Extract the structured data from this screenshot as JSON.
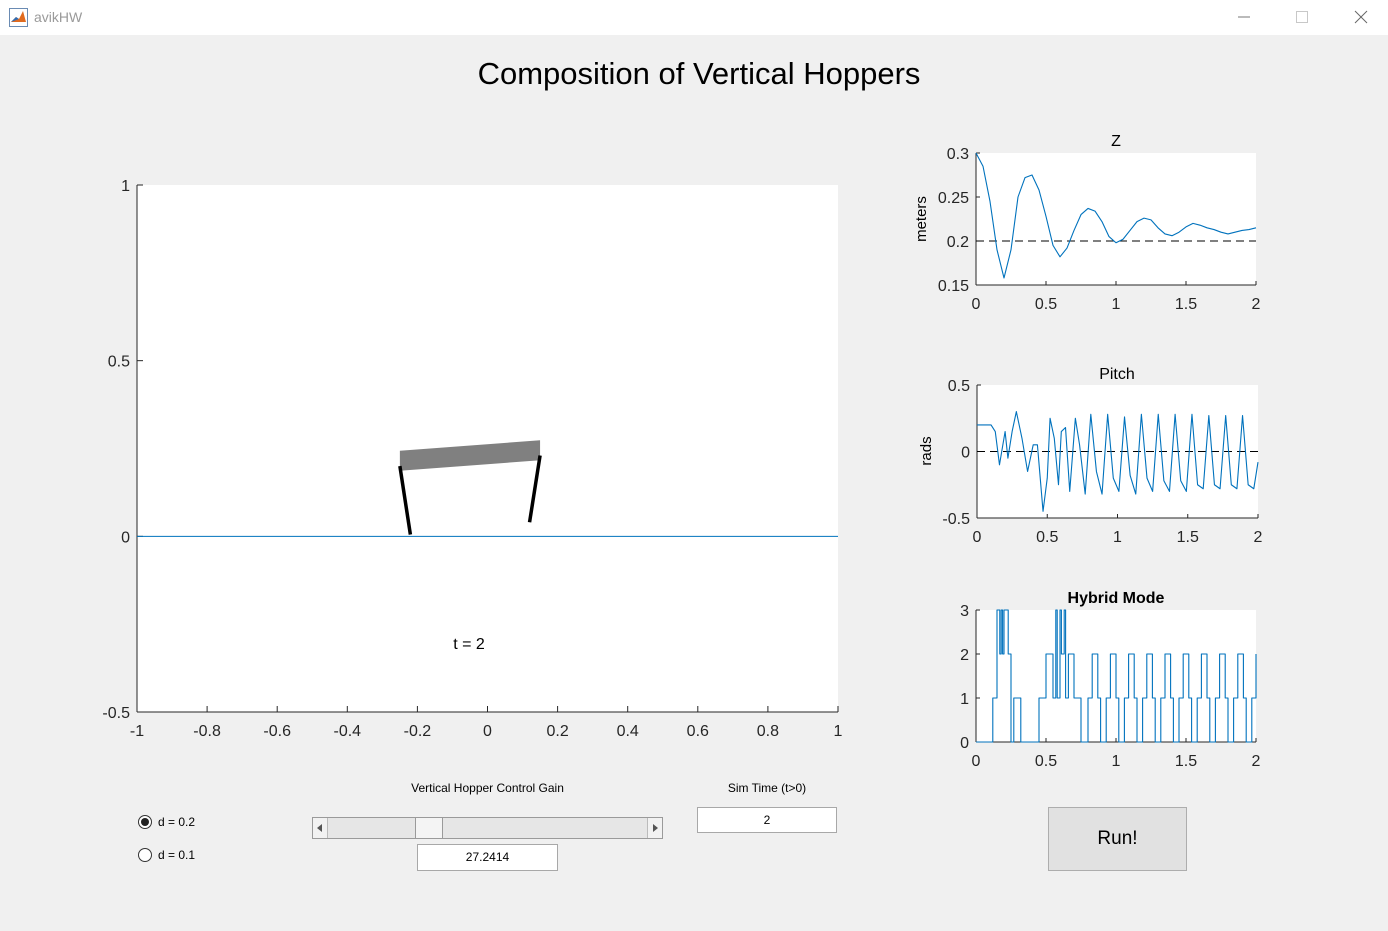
{
  "window": {
    "title": "avikHW",
    "icon": "matlab-icon"
  },
  "figure_title": "Composition of Vertical Hoppers",
  "main_plot": {
    "time_label": "t = 2",
    "xlim": [
      -1,
      1
    ],
    "ylim": [
      -0.5,
      1
    ],
    "xticks": [
      "-1",
      "-0.8",
      "-0.6",
      "-0.4",
      "-0.2",
      "0",
      "0.2",
      "0.4",
      "0.6",
      "0.8",
      "1"
    ],
    "yticks": [
      "1",
      "0.5",
      "0",
      "-0.5"
    ],
    "ground_y": 0,
    "body": [
      [
        -0.25,
        0.215
      ],
      [
        0.15,
        0.245
      ]
    ],
    "legs": [
      [
        [
          -0.25,
          0.2
        ],
        [
          -0.22,
          0.005
        ]
      ],
      [
        [
          0.15,
          0.23
        ],
        [
          0.12,
          0.04
        ]
      ]
    ]
  },
  "chart_data": [
    {
      "type": "line",
      "title": "Z",
      "ylabel": "meters",
      "xlim": [
        0,
        2
      ],
      "ylim": [
        0.15,
        0.3
      ],
      "xticks": [
        "0",
        "0.5",
        "1",
        "1.5",
        "2"
      ],
      "yticks": [
        "0.3",
        "0.25",
        "0.2",
        "0.15"
      ],
      "reference": 0.2,
      "x": [
        0,
        0.05,
        0.1,
        0.15,
        0.2,
        0.25,
        0.3,
        0.35,
        0.4,
        0.45,
        0.5,
        0.55,
        0.6,
        0.65,
        0.7,
        0.75,
        0.8,
        0.85,
        0.9,
        0.95,
        1.0,
        1.05,
        1.1,
        1.15,
        1.2,
        1.25,
        1.3,
        1.35,
        1.4,
        1.45,
        1.5,
        1.55,
        1.6,
        1.65,
        1.7,
        1.75,
        1.8,
        1.85,
        1.9,
        1.95,
        2.0
      ],
      "y": [
        0.3,
        0.285,
        0.245,
        0.19,
        0.158,
        0.19,
        0.25,
        0.272,
        0.275,
        0.258,
        0.228,
        0.195,
        0.182,
        0.192,
        0.212,
        0.23,
        0.237,
        0.234,
        0.222,
        0.205,
        0.198,
        0.202,
        0.212,
        0.222,
        0.226,
        0.224,
        0.215,
        0.208,
        0.206,
        0.21,
        0.216,
        0.22,
        0.218,
        0.215,
        0.213,
        0.21,
        0.208,
        0.21,
        0.212,
        0.213,
        0.215
      ]
    },
    {
      "type": "line",
      "title": "Pitch",
      "ylabel": "rads",
      "xlim": [
        0,
        2
      ],
      "ylim": [
        -0.5,
        0.5
      ],
      "xticks": [
        "0",
        "0.5",
        "1",
        "1.5",
        "2"
      ],
      "yticks": [
        "0.5",
        "0",
        "-0.5"
      ],
      "reference": 0,
      "x": [
        0,
        0.05,
        0.1,
        0.13,
        0.16,
        0.2,
        0.22,
        0.25,
        0.28,
        0.32,
        0.36,
        0.4,
        0.43,
        0.47,
        0.5,
        0.52,
        0.55,
        0.58,
        0.6,
        0.63,
        0.66,
        0.7,
        0.73,
        0.77,
        0.81,
        0.85,
        0.89,
        0.93,
        0.97,
        1.01,
        1.05,
        1.09,
        1.13,
        1.17,
        1.21,
        1.25,
        1.29,
        1.33,
        1.37,
        1.41,
        1.45,
        1.49,
        1.53,
        1.57,
        1.61,
        1.65,
        1.69,
        1.73,
        1.77,
        1.81,
        1.85,
        1.89,
        1.93,
        1.97,
        2.0
      ],
      "y": [
        0.2,
        0.2,
        0.2,
        0.15,
        -0.1,
        0.15,
        -0.05,
        0.15,
        0.3,
        0.1,
        -0.15,
        0.05,
        0.05,
        -0.45,
        -0.2,
        0.25,
        0.1,
        -0.25,
        0.15,
        0.18,
        -0.3,
        0.25,
        0.05,
        -0.32,
        0.28,
        -0.15,
        -0.32,
        0.28,
        -0.2,
        -0.3,
        0.26,
        -0.18,
        -0.32,
        0.28,
        -0.2,
        -0.3,
        0.28,
        -0.22,
        -0.3,
        0.28,
        -0.22,
        -0.3,
        0.28,
        -0.25,
        -0.28,
        0.27,
        -0.25,
        -0.28,
        0.27,
        -0.25,
        -0.28,
        0.27,
        -0.25,
        -0.28,
        -0.08
      ]
    },
    {
      "type": "line",
      "title": "Hybrid Mode",
      "xlim": [
        0,
        2
      ],
      "ylim": [
        0,
        3
      ],
      "xticks": [
        "0",
        "0.5",
        "1",
        "1.5",
        "2"
      ],
      "yticks": [
        "3",
        "2",
        "1",
        "0"
      ],
      "step": true,
      "x": [
        0,
        0.12,
        0.15,
        0.17,
        0.18,
        0.19,
        0.2,
        0.23,
        0.25,
        0.27,
        0.32,
        0.45,
        0.5,
        0.55,
        0.57,
        0.58,
        0.6,
        0.61,
        0.63,
        0.64,
        0.66,
        0.7,
        0.75,
        0.8,
        0.83,
        0.87,
        0.89,
        0.93,
        0.96,
        1.0,
        1.02,
        1.06,
        1.09,
        1.13,
        1.15,
        1.19,
        1.22,
        1.26,
        1.28,
        1.32,
        1.35,
        1.39,
        1.41,
        1.45,
        1.48,
        1.52,
        1.54,
        1.58,
        1.61,
        1.65,
        1.67,
        1.71,
        1.74,
        1.78,
        1.8,
        1.84,
        1.87,
        1.91,
        1.93,
        1.97,
        2.0
      ],
      "y": [
        0,
        1,
        3,
        2,
        3,
        2,
        3,
        2,
        0,
        1,
        0,
        1,
        2,
        1,
        3,
        1,
        3,
        2,
        3,
        1,
        2,
        1,
        0,
        1,
        2,
        1,
        0,
        1,
        2,
        1,
        0,
        1,
        2,
        1,
        0,
        1,
        2,
        1,
        0,
        1,
        2,
        1,
        0,
        1,
        2,
        1,
        0,
        1,
        2,
        1,
        0,
        1,
        2,
        1,
        0,
        1,
        2,
        1,
        0,
        1,
        2
      ]
    }
  ],
  "controls": {
    "radio_a": "d = 0.2",
    "radio_b": "d = 0.1",
    "radio_selected": 0,
    "slider_label": "Vertical Hopper Control Gain",
    "slider_value": "27.2414",
    "slider_fraction": 0.3,
    "sim_time_label": "Sim Time (t>0)",
    "sim_time_value": "2",
    "run_label": "Run!"
  },
  "colors": {
    "line": "#0072bd",
    "body": "#808080",
    "legs": "#000000"
  }
}
